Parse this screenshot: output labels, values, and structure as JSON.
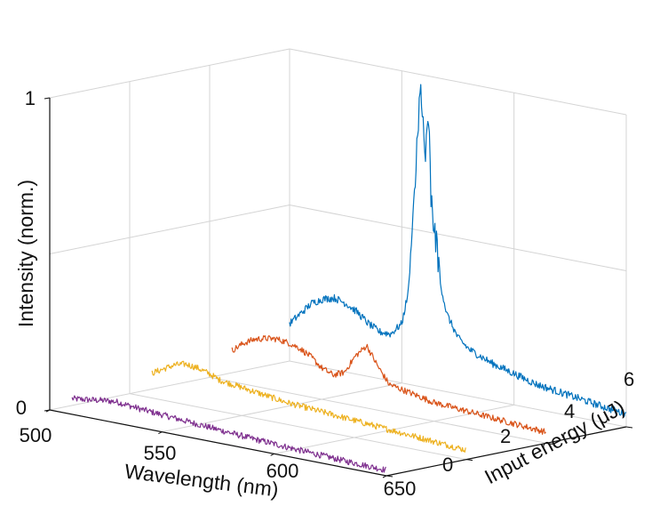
{
  "chart_data": {
    "type": "line",
    "view": "3d-waterfall",
    "xlabel": "Wavelength (nm)",
    "ylabel": "Input energy (μJ)",
    "zlabel": "Intensity (norm.)",
    "x_ticks": [
      "500",
      "550",
      "600",
      "650"
    ],
    "y_ticks": [
      "0",
      "2",
      "4",
      "6"
    ],
    "z_ticks": [
      "0",
      "1"
    ],
    "xlim": [
      500,
      650
    ],
    "ylim": [
      0,
      6
    ],
    "zlim": [
      0,
      1
    ],
    "grid": true,
    "series": [
      {
        "energy": 0,
        "color": "#7E2F8E",
        "x": [
          510,
          515,
          520,
          525,
          530,
          540,
          550,
          560,
          570,
          580,
          590,
          600,
          610,
          620,
          630,
          640,
          650
        ],
        "values": [
          0.05,
          0.055,
          0.06,
          0.065,
          0.068,
          0.06,
          0.055,
          0.05,
          0.045,
          0.04,
          0.035,
          0.032,
          0.028,
          0.025,
          0.022,
          0.02,
          0.018
        ]
      },
      {
        "energy": 2,
        "color": "#EDB120",
        "x": [
          510,
          515,
          520,
          525,
          530,
          535,
          540,
          550,
          560,
          570,
          580,
          590,
          600,
          610,
          620,
          630,
          640,
          650
        ],
        "values": [
          0.08,
          0.1,
          0.12,
          0.13,
          0.125,
          0.115,
          0.1,
          0.09,
          0.08,
          0.07,
          0.065,
          0.06,
          0.055,
          0.05,
          0.045,
          0.04,
          0.035,
          0.03
        ]
      },
      {
        "energy": 4,
        "color": "#D95319",
        "x": [
          510,
          515,
          520,
          525,
          530,
          535,
          540,
          545,
          550,
          555,
          560,
          565,
          570,
          575,
          580,
          590,
          600,
          610,
          620,
          630,
          640,
          650
        ],
        "values": [
          0.1,
          0.13,
          0.15,
          0.16,
          0.165,
          0.16,
          0.15,
          0.13,
          0.1,
          0.085,
          0.1,
          0.16,
          0.2,
          0.14,
          0.09,
          0.075,
          0.06,
          0.055,
          0.05,
          0.045,
          0.04,
          0.035
        ]
      },
      {
        "energy": 6,
        "color": "#0072BD",
        "x": [
          500,
          505,
          510,
          515,
          520,
          525,
          530,
          535,
          540,
          545,
          550,
          553,
          555,
          557,
          558,
          560,
          562,
          563,
          565,
          567,
          570,
          575,
          580,
          590,
          600,
          610,
          620,
          630,
          640,
          650
        ],
        "values": [
          0.12,
          0.16,
          0.2,
          0.22,
          0.23,
          0.22,
          0.2,
          0.17,
          0.15,
          0.15,
          0.19,
          0.3,
          0.55,
          0.8,
          1.0,
          0.75,
          0.85,
          0.6,
          0.5,
          0.35,
          0.25,
          0.18,
          0.15,
          0.12,
          0.1,
          0.08,
          0.07,
          0.06,
          0.05,
          0.04
        ]
      }
    ]
  }
}
